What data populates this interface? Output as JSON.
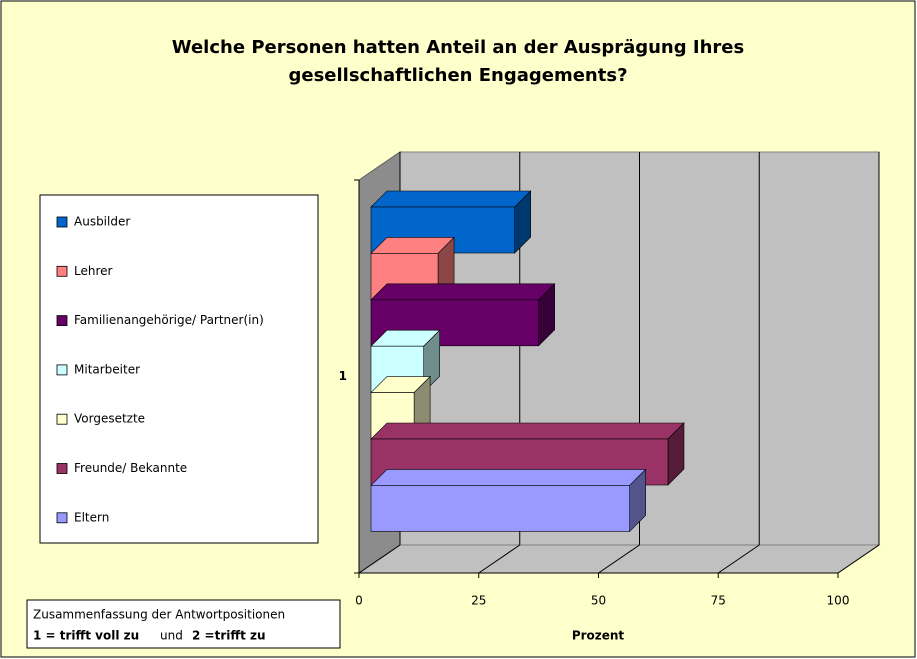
{
  "chart_data": {
    "type": "bar3d",
    "orientation": "horizontal",
    "title": "Welche Personen hatten Anteil an der Ausprägung Ihres gesellschaftlichen Engagements?",
    "categories": [
      "1"
    ],
    "series": [
      {
        "name": "Ausbilder",
        "color": "#0066cc",
        "values": [
          30
        ]
      },
      {
        "name": "Lehrer",
        "color": "#ff8080",
        "values": [
          14
        ]
      },
      {
        "name": "Familienangehörige/ Partner(in)",
        "color": "#660066",
        "values": [
          35
        ]
      },
      {
        "name": "Mitarbeiter",
        "color": "#ccffff",
        "values": [
          11
        ]
      },
      {
        "name": "Vorgesetzte",
        "color": "#ffffcc",
        "values": [
          9
        ]
      },
      {
        "name": "Freunde/ Bekannte",
        "color": "#993366",
        "values": [
          62
        ]
      },
      {
        "name": "Eltern",
        "color": "#9999ff",
        "values": [
          54
        ]
      }
    ],
    "xlabel": "Prozent",
    "xlim": [
      0,
      100
    ],
    "xticks": [
      0,
      25,
      50,
      75,
      100
    ],
    "grid": true,
    "legend": "left",
    "note": [
      "Zusammenfassung der Antwortpositionen",
      "1 = trifft voll zu",
      "und",
      "2 =trifft zu"
    ]
  }
}
